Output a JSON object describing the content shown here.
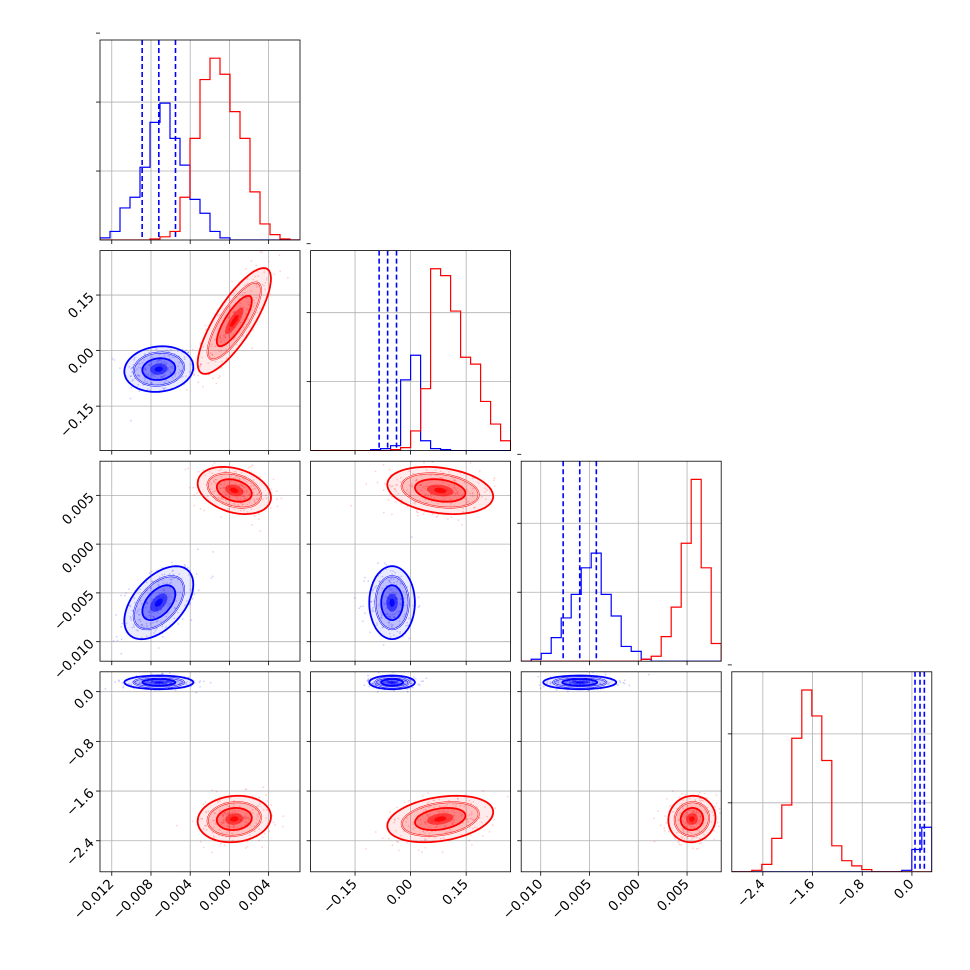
{
  "chart_data": {
    "type": "corner",
    "title": "",
    "colors": {
      "series_a": "#0000ff",
      "series_b": "#ff0000"
    },
    "grid": true,
    "legend": "none",
    "parameters": [
      {
        "range": [
          -0.0132,
          0.0072
        ],
        "ticks": [
          -0.012,
          -0.008,
          -0.004,
          0.0,
          0.004
        ],
        "tick_labels": [
          "−0.012",
          "−0.008",
          "−0.004",
          "0.000",
          "0.004"
        ]
      },
      {
        "range": [
          -0.27,
          0.27
        ],
        "ticks": [
          -0.15,
          0.0,
          0.15
        ],
        "tick_labels": [
          "−0.15",
          "0.00",
          "0.15"
        ]
      },
      {
        "range": [
          -0.012,
          0.0085
        ],
        "ticks": [
          -0.01,
          -0.005,
          0.0,
          0.005
        ],
        "tick_labels": [
          "−0.010",
          "−0.005",
          "0.000",
          "0.005"
        ]
      },
      {
        "range": [
          -2.9,
          0.32
        ],
        "ticks": [
          -2.4,
          -1.6,
          -0.8,
          0.0
        ],
        "tick_labels": [
          "−2.4",
          "−1.6",
          "−0.8",
          "0.0"
        ]
      }
    ],
    "series": [
      {
        "color": "#0000ff",
        "means": [
          -0.0072,
          -0.05,
          -0.006,
          0.15
        ],
        "stds": [
          0.0016,
          0.028,
          0.0017,
          0.05
        ],
        "correlations": {
          "1-0": 0.1,
          "2-0": 0.5,
          "2-1": 0.0,
          "3-0": 0.0,
          "3-1": 0.0,
          "3-2": 0.0
        },
        "quantiles": [
          [
            -0.0089,
            -0.0072,
            -0.0055
          ],
          [
            -0.085,
            -0.062,
            -0.038
          ],
          [
            -0.0077,
            -0.006,
            -0.0043
          ],
          [
            0.05,
            0.13,
            0.2
          ]
        ],
        "histograms": [
          {
            "counts": [
              2,
              8,
              30,
              40,
              68,
              110,
              128,
              95,
              70,
              38,
              25,
              8,
              2,
              0,
              0,
              0,
              0,
              0,
              0,
              0
            ]
          },
          {
            "counts": [
              0,
              0,
              0,
              0,
              0,
              0,
              1,
              2,
              5,
              72,
              97,
              10,
              2,
              1,
              0,
              0,
              0,
              0,
              0,
              0
            ]
          },
          {
            "counts": [
              0,
              2,
              8,
              24,
              44,
              68,
              95,
              110,
              68,
              46,
              15,
              10,
              2,
              0,
              0,
              0,
              0,
              0,
              0,
              0
            ]
          },
          {
            "counts": [
              0,
              0,
              0,
              0,
              0,
              0,
              0,
              0,
              0,
              0,
              0,
              0,
              0,
              0,
              0,
              0,
              0,
              2,
              30,
              60
            ]
          }
        ]
      },
      {
        "color": "#ff0000",
        "means": [
          0.0005,
          0.08,
          0.0055,
          -2.05
        ],
        "stds": [
          0.0017,
          0.065,
          0.0011,
          0.17
        ],
        "correlations": {
          "1-0": 0.8,
          "2-0": -0.3,
          "2-1": -0.25,
          "3-0": 0.1,
          "3-1": 0.3,
          "3-2": 0.05
        },
        "quantiles": [
          [
            -0.0012,
            0.0005,
            0.0022
          ],
          [
            0.015,
            0.08,
            0.145
          ],
          [
            0.0044,
            0.0055,
            0.0066
          ],
          [
            -2.22,
            -2.05,
            -1.88
          ]
        ],
        "histograms": [
          {
            "counts": [
              0,
              0,
              0,
              0,
              0,
              1,
              3,
              8,
              40,
              95,
              150,
              170,
              155,
              120,
              95,
              45,
              15,
              5,
              1,
              0
            ]
          },
          {
            "counts": [
              0,
              0,
              0,
              0,
              0,
              0,
              0,
              0,
              1,
              3,
              20,
              63,
              185,
              178,
              142,
              95,
              88,
              50,
              27,
              10
            ]
          },
          {
            "counts": [
              0,
              0,
              0,
              0,
              0,
              0,
              0,
              0,
              0,
              0,
              0,
              0,
              2,
              5,
              25,
              55,
              120,
              185,
              95,
              18
            ]
          },
          {
            "counts": [
              0,
              0,
              2,
              10,
              45,
              90,
              180,
              245,
              210,
              150,
              35,
              15,
              8,
              3,
              0,
              0,
              0,
              0,
              0,
              0
            ]
          }
        ]
      }
    ]
  }
}
